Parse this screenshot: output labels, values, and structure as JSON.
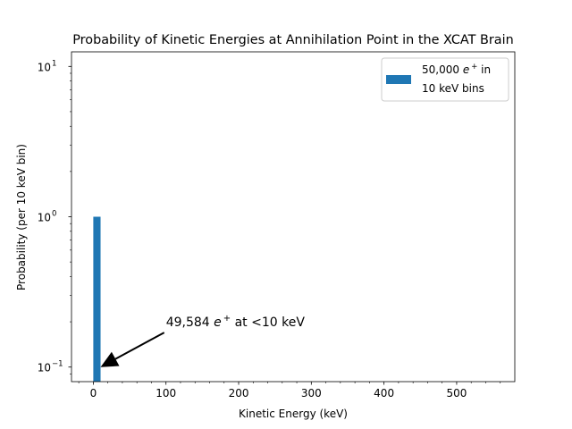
{
  "chart_data": {
    "type": "bar",
    "title": "Probability of Kinetic Energies at Annihilation Point in the XCAT Brain",
    "xlabel": "Kinetic Energy (keV)",
    "ylabel": "Probability (per 10 keV bin)",
    "xlim": [
      -30,
      580
    ],
    "ylim": [
      0.08,
      12.5
    ],
    "yscale": "log",
    "grid": false,
    "legend_position": "top-right",
    "bar_color": "#1f77b4",
    "bin_width": 10,
    "bins": [
      {
        "x0": 0,
        "x1": 10,
        "value": 1.0
      }
    ],
    "x_ticks": [
      0,
      100,
      200,
      300,
      400,
      500
    ],
    "x_tick_labels": [
      "0",
      "100",
      "200",
      "300",
      "400",
      "500"
    ],
    "x_minor_ticks": [
      -20,
      20,
      40,
      60,
      80,
      120,
      140,
      160,
      180,
      220,
      240,
      260,
      280,
      320,
      340,
      360,
      380,
      420,
      440,
      460,
      480,
      520,
      540,
      560
    ],
    "y_ticks": [
      0.1,
      1,
      10
    ],
    "y_tick_labels": [
      "10",
      "10",
      "10"
    ],
    "y_tick_exponents": [
      "−1",
      "0",
      "1"
    ],
    "y_minor_ticks": [
      0.09,
      0.2,
      0.3,
      0.4,
      0.5,
      0.6,
      0.7,
      0.8,
      0.9,
      2,
      3,
      4,
      5,
      6,
      7,
      8,
      9
    ],
    "legend": {
      "label_prefix": "50,000 ",
      "label_symbol": "e",
      "label_sup": "+",
      "label_suffix": " in",
      "label_line2": "10 keV bins"
    },
    "annotation": {
      "text_prefix": "49,584 ",
      "text_symbol": "e",
      "text_sup": "+",
      "text_suffix": " at <10 keV",
      "text_x": 100,
      "text_y": 0.2,
      "arrow_to_x": 10,
      "arrow_to_y": 0.1
    }
  }
}
